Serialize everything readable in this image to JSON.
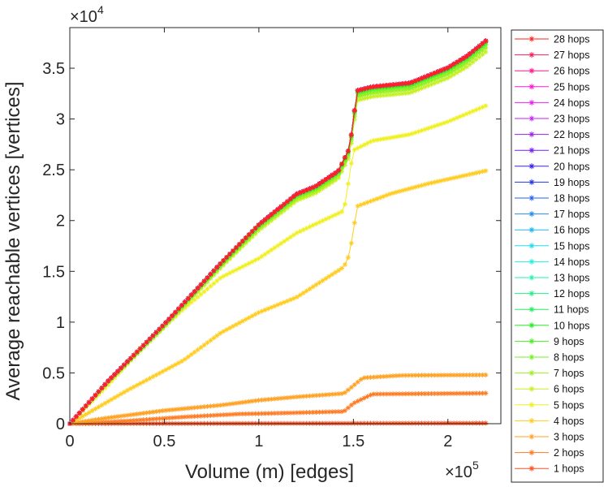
{
  "chart_data": {
    "type": "line",
    "title": "",
    "xlabel": "Volume (m) [edges]",
    "ylabel": "Average reachable vertices [vertices]",
    "x_multiplier": "×10",
    "x_multiplier_exp": "5",
    "y_multiplier": "×10",
    "y_multiplier_exp": "4",
    "xlim": [
      0,
      2.28
    ],
    "ylim": [
      0,
      3.9
    ],
    "x_ticks": [
      0,
      0.5,
      1,
      1.5,
      2
    ],
    "x_tick_labels": [
      "0",
      "0.5",
      "1",
      "1.5",
      "2"
    ],
    "y_ticks": [
      0,
      0.5,
      1,
      1.5,
      2,
      2.5,
      3,
      3.5
    ],
    "y_tick_labels": [
      "0",
      "0.5",
      "1",
      "1.5",
      "2",
      "2.5",
      "3",
      "3.5"
    ],
    "grid": false,
    "legend_position": "outside-right",
    "marker": "asterisk",
    "series": [
      {
        "name": "28 hops",
        "color": "#ff2020",
        "profile": "high",
        "final": 3.77
      },
      {
        "name": "27 hops",
        "color": "#ff1a55",
        "profile": "high",
        "final": 3.77
      },
      {
        "name": "26 hops",
        "color": "#ff1a8c",
        "profile": "high",
        "final": 3.77
      },
      {
        "name": "25 hops",
        "color": "#ff1ad0",
        "profile": "high",
        "final": 3.77
      },
      {
        "name": "24 hops",
        "color": "#ee20f5",
        "profile": "high",
        "final": 3.77
      },
      {
        "name": "23 hops",
        "color": "#c020f0",
        "profile": "high",
        "final": 3.77
      },
      {
        "name": "22 hops",
        "color": "#9a20f0",
        "profile": "high",
        "final": 3.77
      },
      {
        "name": "21 hops",
        "color": "#7420f0",
        "profile": "high",
        "final": 3.77
      },
      {
        "name": "20 hops",
        "color": "#3a20f0",
        "profile": "high",
        "final": 3.77
      },
      {
        "name": "19 hops",
        "color": "#2034f0",
        "profile": "high",
        "final": 3.77
      },
      {
        "name": "18 hops",
        "color": "#2060f0",
        "profile": "high",
        "final": 3.77
      },
      {
        "name": "17 hops",
        "color": "#208cf0",
        "profile": "high",
        "final": 3.77
      },
      {
        "name": "16 hops",
        "color": "#20b8f0",
        "profile": "high",
        "final": 3.77
      },
      {
        "name": "15 hops",
        "color": "#20dcf0",
        "profile": "high",
        "final": 3.77
      },
      {
        "name": "14 hops",
        "color": "#20f0dc",
        "profile": "high",
        "final": 3.77
      },
      {
        "name": "13 hops",
        "color": "#20f0b0",
        "profile": "high",
        "final": 3.77
      },
      {
        "name": "12 hops",
        "color": "#20f088",
        "profile": "high",
        "final": 3.77
      },
      {
        "name": "11 hops",
        "color": "#20f060",
        "profile": "high",
        "final": 3.77
      },
      {
        "name": "10 hops",
        "color": "#22ee22",
        "profile": "high",
        "final": 3.76
      },
      {
        "name": "9 hops",
        "color": "#48f020",
        "profile": "high",
        "final": 3.75
      },
      {
        "name": "8 hops",
        "color": "#70f020",
        "profile": "high",
        "final": 3.73
      },
      {
        "name": "7 hops",
        "color": "#9cf020",
        "profile": "high",
        "final": 3.7
      },
      {
        "name": "6 hops",
        "color": "#c8f020",
        "profile": "high",
        "final": 3.66
      },
      {
        "name": "5 hops",
        "color": "#f0f020",
        "profile": "mid5",
        "final": 3.13
      },
      {
        "name": "4 hops",
        "color": "#ffcc20",
        "profile": "mid4",
        "final": 2.49
      },
      {
        "name": "3 hops",
        "color": "#ffa020",
        "profile": "low3",
        "final": 0.48
      },
      {
        "name": "2 hops",
        "color": "#ff7a20",
        "profile": "low2",
        "final": 0.3
      },
      {
        "name": "1 hops",
        "color": "#ff5020",
        "profile": "flat",
        "final": 0.005
      }
    ]
  }
}
